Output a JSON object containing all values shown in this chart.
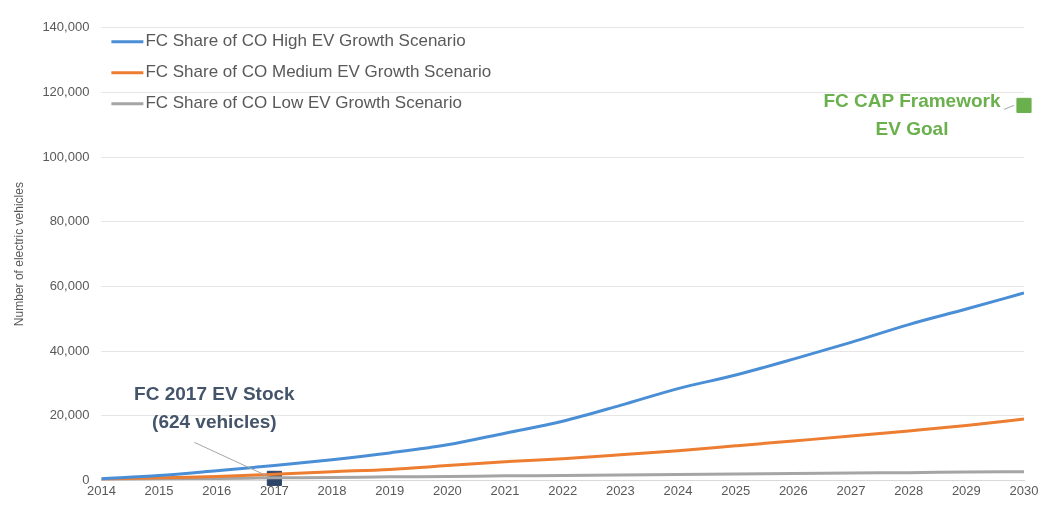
{
  "chart_data": {
    "type": "line",
    "ylabel": "Number of electric vehicles",
    "x": [
      2014,
      2015,
      2016,
      2017,
      2018,
      2019,
      2020,
      2021,
      2022,
      2023,
      2024,
      2025,
      2026,
      2027,
      2028,
      2029,
      2030
    ],
    "series": [
      {
        "name": "FC Share of CO High EV Growth Scenario",
        "color": "#4a8fd6",
        "values": [
          500,
          1500,
          3000,
          4600,
          6400,
          8500,
          11000,
          14600,
          18300,
          23200,
          28400,
          32600,
          37500,
          42700,
          48200,
          53000,
          58000
        ]
      },
      {
        "name": "FC Share of CO Medium EV Growth Scenario",
        "color": "#ed7d31",
        "values": [
          400,
          800,
          1200,
          1900,
          2700,
          3400,
          4600,
          5800,
          6700,
          7900,
          9200,
          10700,
          12200,
          13700,
          15300,
          17000,
          19000
        ]
      },
      {
        "name": "FC Share of CO Low EV Growth Scenario",
        "color": "#a5a5a5",
        "values": [
          300,
          500,
          600,
          800,
          900,
          1100,
          1200,
          1400,
          1500,
          1700,
          1800,
          2000,
          2100,
          2300,
          2400,
          2600,
          2700
        ]
      },
      {
        "type": "scatter",
        "marker": "square",
        "color": "#2e4567",
        "x": [
          2017
        ],
        "values": [
          624
        ]
      },
      {
        "type": "scatter",
        "marker": "square",
        "color": "#6ab04c",
        "x": [
          2030
        ],
        "values": [
          116000
        ]
      }
    ],
    "annotations": [
      {
        "text": "FC 2017 EV Stock\n(624 vehicles)",
        "x": 2017,
        "y": 624
      },
      {
        "text": "FC CAP Framework\nEV Goal",
        "x": 2030,
        "y": 116000
      }
    ],
    "xlim": [
      2014,
      2030
    ],
    "xticks": [
      2014,
      2015,
      2016,
      2017,
      2018,
      2019,
      2020,
      2021,
      2022,
      2023,
      2024,
      2025,
      2026,
      2027,
      2028,
      2029,
      2030
    ],
    "ylim": [
      0,
      140000
    ],
    "yticks": [
      {
        "value": 0,
        "label": "0"
      },
      {
        "value": 20000,
        "label": "20,000"
      },
      {
        "value": 40000,
        "label": "40,000"
      },
      {
        "value": 60000,
        "label": "60,000"
      },
      {
        "value": 80000,
        "label": "80,000"
      },
      {
        "value": 100000,
        "label": "100,000"
      },
      {
        "value": 120000,
        "label": "120,000"
      },
      {
        "value": 140000,
        "label": "140,000"
      }
    ],
    "grid": "y",
    "legend": "top left",
    "marker": "none",
    "line_style": "solid"
  }
}
